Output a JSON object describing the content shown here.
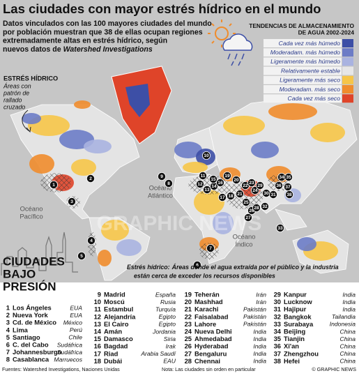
{
  "title": "Las ciudades con mayor estrés hídrico en el mundo",
  "intro": {
    "lines": [
      "Datos vinculados con las 100 mayores ciudades del mundo",
      "por población muestran que 38 de ellas ocupan regiones",
      "extremadamente altas en estrés hídrico, según",
      "nuevos datos de"
    ],
    "source": "Watershed Investigations"
  },
  "legend": {
    "title": [
      "TENDENCIAS DE ALMACENAMIENTO",
      "DE AGUA 2002-2024"
    ],
    "items": [
      {
        "label": "Cada vez más húmedo",
        "color": "#3d4fa6"
      },
      {
        "label": "Moderadam. más húmedo",
        "color": "#6c7cc6"
      },
      {
        "label": "Ligeramente más húmedo",
        "color": "#a9b3e0"
      },
      {
        "label": "Relativamente estable",
        "color": "#e6e6e6"
      },
      {
        "label": "Ligeramente más seco",
        "color": "#f6c548"
      },
      {
        "label": "Moderadam. más seco",
        "color": "#f08c2c"
      },
      {
        "label": "Cada vez más seco",
        "color": "#df4429"
      }
    ]
  },
  "stress_key": {
    "title": "ESTRÉS HÍDRICO",
    "lines": [
      "Áreas con",
      "patrón de",
      "rallado",
      "cruzado"
    ]
  },
  "oceans": [
    {
      "lines": [
        "Océano",
        "Atlántico"
      ]
    },
    {
      "lines": [
        "Océano",
        "Pacífico"
      ]
    },
    {
      "lines": [
        "Océano",
        "Índico"
      ]
    }
  ],
  "stress_note": {
    "lead": "Estrés hídrico:",
    "lines": [
      "Áreas donde el agua extraída por el público y la industria",
      "están cerca de exceder los recursos disponibles"
    ]
  },
  "watermark": "GRAPHIC NEWS",
  "section_title": [
    "CIUDADES",
    "BAJO",
    "PRESIÓN"
  ],
  "cities": [
    {
      "num": 1,
      "name": "Los Ángeles",
      "country": "EUA"
    },
    {
      "num": 2,
      "name": "Nueva York",
      "country": "EUA"
    },
    {
      "num": 3,
      "name": "Cd. de México",
      "country": "México"
    },
    {
      "num": 4,
      "name": "Lima",
      "country": "Perú"
    },
    {
      "num": 5,
      "name": "Santiago",
      "country": "Chile"
    },
    {
      "num": 6,
      "name": "C. del Cabo",
      "country": "Sudáfrica"
    },
    {
      "num": 7,
      "name": "Johannesburgo",
      "country": "Sudáfrica"
    },
    {
      "num": 8,
      "name": "Casablanca",
      "country": "Marruecos"
    },
    {
      "num": 9,
      "name": "Madrid",
      "country": "España"
    },
    {
      "num": 10,
      "name": "Moscú",
      "country": "Rusia"
    },
    {
      "num": 11,
      "name": "Estambul",
      "country": "Turquía"
    },
    {
      "num": 12,
      "name": "Alejandría",
      "country": "Egipto"
    },
    {
      "num": 13,
      "name": "El Cairo",
      "country": "Egipto"
    },
    {
      "num": 14,
      "name": "Amán",
      "country": "Jordania"
    },
    {
      "num": 15,
      "name": "Damasco",
      "country": "Siria"
    },
    {
      "num": 16,
      "name": "Bagdad",
      "country": "Irak"
    },
    {
      "num": 17,
      "name": "Riad",
      "country": "Arabia Saudí"
    },
    {
      "num": 18,
      "name": "Dubái",
      "country": "EAU"
    },
    {
      "num": 19,
      "name": "Teherán",
      "country": "Irán"
    },
    {
      "num": 20,
      "name": "Mashhad",
      "country": "Irán"
    },
    {
      "num": 21,
      "name": "Karachi",
      "country": "Pakistán"
    },
    {
      "num": 22,
      "name": "Faisalabad",
      "country": "Pakistán"
    },
    {
      "num": 23,
      "name": "Lahore",
      "country": "Pakistán"
    },
    {
      "num": 24,
      "name": "Nueva Delhi",
      "country": "India"
    },
    {
      "num": 25,
      "name": "Ahmedabad",
      "country": "India"
    },
    {
      "num": 26,
      "name": "Hyderabad",
      "country": "India"
    },
    {
      "num": 27,
      "name": "Bengaluru",
      "country": "India"
    },
    {
      "num": 28,
      "name": "Chennai",
      "country": "India"
    },
    {
      "num": 29,
      "name": "Kanpur",
      "country": "India"
    },
    {
      "num": 30,
      "name": "Lucknow",
      "country": "India"
    },
    {
      "num": 31,
      "name": "Hajipur",
      "country": "India"
    },
    {
      "num": 32,
      "name": "Bangkok",
      "country": "Tailandia"
    },
    {
      "num": 33,
      "name": "Surabaya",
      "country": "Indonesia"
    },
    {
      "num": 34,
      "name": "Beijing",
      "country": "China"
    },
    {
      "num": 35,
      "name": "Tianjin",
      "country": "China"
    },
    {
      "num": 36,
      "name": "Xi'an",
      "country": "China"
    },
    {
      "num": 37,
      "name": "Zhengzhou",
      "country": "China"
    },
    {
      "num": 38,
      "name": "Hefei",
      "country": "China"
    }
  ],
  "footer": {
    "sources": "Fuentes: Watershed Investigations, Naciones Unidas",
    "note": "Nota: Las ciudades sin orden en particular",
    "credit": "© GRAPHIC NEWS"
  }
}
